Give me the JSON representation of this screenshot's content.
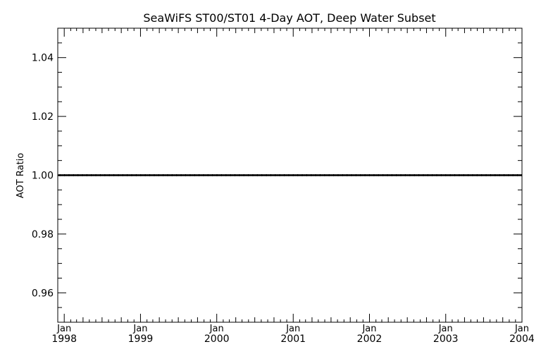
{
  "chart_data": {
    "type": "line",
    "title": "SeaWiFS ST00/ST01 4-Day AOT, Deep Water Subset",
    "ylabel": "AOT Ratio",
    "xlabel": "",
    "xlim": [
      "1997-12-01",
      "2004-01-01"
    ],
    "ylim": [
      0.95,
      1.05
    ],
    "y_ticks": [
      {
        "value": 0.96,
        "label": "0.96"
      },
      {
        "value": 0.98,
        "label": "0.98"
      },
      {
        "value": 1.0,
        "label": "1.00"
      },
      {
        "value": 1.02,
        "label": "1.02"
      },
      {
        "value": 1.04,
        "label": "1.04"
      }
    ],
    "x_ticks": [
      {
        "date": "1998-01-01",
        "month": "Jan",
        "year": "1998"
      },
      {
        "date": "1999-01-01",
        "month": "Jan",
        "year": "1999"
      },
      {
        "date": "2000-01-01",
        "month": "Jan",
        "year": "2000"
      },
      {
        "date": "2001-01-01",
        "month": "Jan",
        "year": "2001"
      },
      {
        "date": "2002-01-01",
        "month": "Jan",
        "year": "2002"
      },
      {
        "date": "2003-01-01",
        "month": "Jan",
        "year": "2003"
      },
      {
        "date": "2004-01-01",
        "month": "Jan",
        "year": "2004"
      }
    ],
    "grid": false,
    "series": [
      {
        "start": "1997-12-01",
        "end": "2004-01-01",
        "interval_days": 4,
        "value": 1.0
      }
    ]
  }
}
